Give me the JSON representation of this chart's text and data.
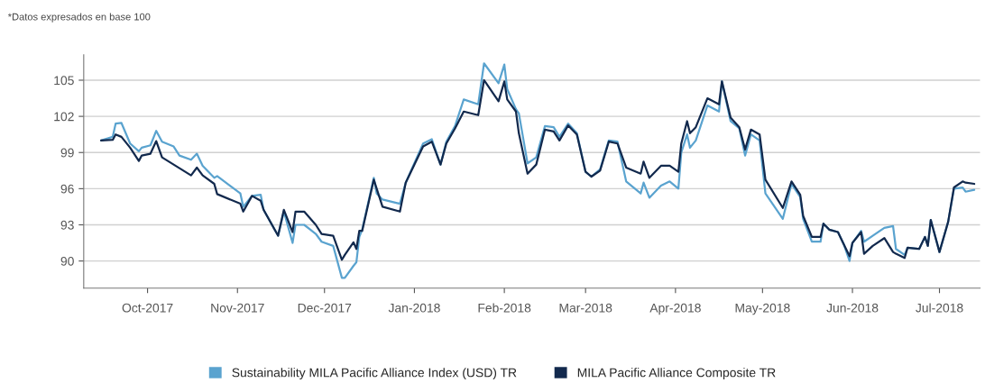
{
  "chart_data": {
    "type": "line",
    "annotations": [
      "*Datos expresados en base 100"
    ],
    "x": [
      "2017-09-15",
      "2017-09-19",
      "2017-09-20",
      "2017-09-22",
      "2017-09-25",
      "2017-09-28",
      "2017-09-29",
      "2017-10-02",
      "2017-10-04",
      "2017-10-06",
      "2017-10-10",
      "2017-10-12",
      "2017-10-16",
      "2017-10-18",
      "2017-10-20",
      "2017-10-24",
      "2017-10-25",
      "2017-11-02",
      "2017-11-03",
      "2017-11-06",
      "2017-11-09",
      "2017-11-10",
      "2017-11-15",
      "2017-11-17",
      "2017-11-20",
      "2017-11-21",
      "2017-11-24",
      "2017-11-28",
      "2017-11-30",
      "2017-12-04",
      "2017-12-07",
      "2017-12-08",
      "2017-12-11",
      "2017-12-12",
      "2017-12-13",
      "2017-12-14",
      "2017-12-18",
      "2017-12-19",
      "2017-12-21",
      "2017-12-27",
      "2017-12-29",
      "2018-01-04",
      "2018-01-07",
      "2018-01-10",
      "2018-01-12",
      "2018-01-15",
      "2018-01-18",
      "2018-01-23",
      "2018-01-25",
      "2018-01-30",
      "2018-02-01",
      "2018-02-02",
      "2018-02-05",
      "2018-02-06",
      "2018-02-09",
      "2018-02-12",
      "2018-02-15",
      "2018-02-18",
      "2018-02-20",
      "2018-02-23",
      "2018-02-26",
      "2018-03-01",
      "2018-03-03",
      "2018-03-06",
      "2018-03-09",
      "2018-03-12",
      "2018-03-15",
      "2018-03-20",
      "2018-03-21",
      "2018-03-23",
      "2018-03-27",
      "2018-03-30",
      "2018-04-02",
      "2018-04-03",
      "2018-04-05",
      "2018-04-06",
      "2018-04-08",
      "2018-04-12",
      "2018-04-16",
      "2018-04-17",
      "2018-04-20",
      "2018-04-23",
      "2018-04-25",
      "2018-04-27",
      "2018-04-30",
      "2018-05-02",
      "2018-05-08",
      "2018-05-11",
      "2018-05-14",
      "2018-05-15",
      "2018-05-18",
      "2018-05-21",
      "2018-05-22",
      "2018-05-24",
      "2018-05-27",
      "2018-05-29",
      "2018-05-31",
      "2018-06-01",
      "2018-06-04",
      "2018-06-05",
      "2018-06-08",
      "2018-06-12",
      "2018-06-15",
      "2018-06-16",
      "2018-06-19",
      "2018-06-20",
      "2018-06-24",
      "2018-06-26",
      "2018-06-27",
      "2018-06-28",
      "2018-07-01",
      "2018-07-04",
      "2018-07-06",
      "2018-07-09",
      "2018-07-10",
      "2018-07-13"
    ],
    "series": [
      {
        "name": "Sustainability MILA Pacific Alliance Index (USD) TR",
        "color": "#5aa3cf",
        "values": [
          100.0,
          100.3,
          101.4,
          101.45,
          99.75,
          99.1,
          99.4,
          99.6,
          100.8,
          99.9,
          99.5,
          98.75,
          98.4,
          98.9,
          97.9,
          96.9,
          97.05,
          95.6,
          94.5,
          95.4,
          95.5,
          94.25,
          92.1,
          94.1,
          91.5,
          93.0,
          93.0,
          92.25,
          91.6,
          91.25,
          88.6,
          88.6,
          89.6,
          89.9,
          92.0,
          92.6,
          96.9,
          95.6,
          95.1,
          94.75,
          96.5,
          99.75,
          100.1,
          98.0,
          99.9,
          101.2,
          103.4,
          103.0,
          106.4,
          104.75,
          106.3,
          104.25,
          102.6,
          102.25,
          98.1,
          98.6,
          101.2,
          101.1,
          100.3,
          101.4,
          100.6,
          97.4,
          97.0,
          97.6,
          100.0,
          99.9,
          96.6,
          95.6,
          96.5,
          95.25,
          96.25,
          96.6,
          96.0,
          99.0,
          100.5,
          99.4,
          100.0,
          102.9,
          102.4,
          104.9,
          101.6,
          101.0,
          98.75,
          100.5,
          100.0,
          95.6,
          93.5,
          96.4,
          95.3,
          93.5,
          91.6,
          91.6,
          93.1,
          92.6,
          92.4,
          91.4,
          90.0,
          91.5,
          92.5,
          91.6,
          92.1,
          92.75,
          92.9,
          91.0,
          90.5,
          91.1,
          91.0,
          92.0,
          91.25,
          93.4,
          90.75,
          93.25,
          96.0,
          96.1,
          95.75,
          95.9
        ]
      },
      {
        "name": "MILA Pacific Alliance Composite TR",
        "color": "#12294d",
        "values": [
          100.0,
          100.05,
          100.5,
          100.3,
          99.4,
          98.3,
          98.75,
          98.9,
          99.95,
          98.6,
          98.0,
          97.7,
          97.1,
          97.75,
          97.1,
          96.4,
          95.55,
          94.75,
          94.1,
          95.4,
          95.0,
          94.25,
          92.1,
          94.25,
          92.4,
          94.1,
          94.1,
          93.0,
          92.25,
          92.1,
          90.1,
          90.5,
          91.55,
          91.0,
          92.5,
          92.5,
          96.75,
          96.0,
          94.5,
          94.1,
          96.5,
          99.5,
          99.9,
          98.0,
          99.75,
          101.0,
          102.4,
          102.1,
          105.0,
          103.25,
          104.9,
          103.4,
          102.4,
          100.6,
          97.25,
          98.0,
          100.9,
          100.75,
          100.0,
          101.25,
          100.5,
          97.4,
          97.0,
          97.5,
          99.9,
          99.75,
          97.75,
          97.25,
          98.25,
          96.9,
          97.9,
          97.9,
          97.4,
          99.75,
          101.6,
          100.6,
          101.1,
          103.5,
          103.0,
          104.9,
          101.9,
          101.1,
          99.25,
          100.9,
          100.5,
          96.75,
          94.4,
          96.6,
          95.5,
          93.75,
          92.0,
          92.0,
          93.1,
          92.6,
          92.4,
          91.4,
          90.4,
          91.5,
          92.4,
          90.6,
          91.25,
          91.9,
          90.75,
          90.6,
          90.25,
          91.1,
          91.0,
          92.0,
          91.25,
          93.4,
          90.75,
          93.25,
          96.1,
          96.6,
          96.5,
          96.4
        ]
      }
    ],
    "xlim": [
      "2017-09-09",
      "2018-07-15"
    ],
    "xticks": [
      {
        "value": "2017-10-01",
        "label": "Oct-2017"
      },
      {
        "value": "2017-11-01",
        "label": "Nov-2017"
      },
      {
        "value": "2017-12-01",
        "label": "Dec-2017"
      },
      {
        "value": "2018-01-01",
        "label": "Jan-2018"
      },
      {
        "value": "2018-02-01",
        "label": "Feb-2018"
      },
      {
        "value": "2018-03-01",
        "label": "Mar-2018"
      },
      {
        "value": "2018-04-01",
        "label": "Apr-2018"
      },
      {
        "value": "2018-05-01",
        "label": "May-2018"
      },
      {
        "value": "2018-06-01",
        "label": "Jun-2018"
      },
      {
        "value": "2018-07-01",
        "label": "Jul-2018"
      }
    ],
    "ylim": [
      87.75,
      107.1
    ],
    "yticks": [
      90,
      93,
      96,
      99,
      102,
      105
    ],
    "grid": "y",
    "legend": "bottom",
    "marker": "none",
    "line_style": "solid"
  }
}
